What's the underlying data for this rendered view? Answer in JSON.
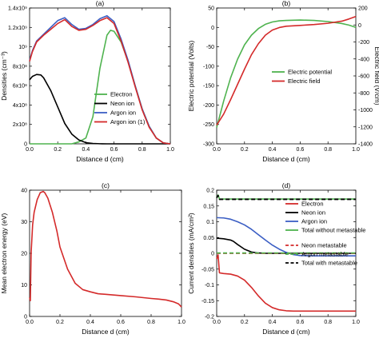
{
  "chart_data": [
    {
      "panel": "a",
      "type": "line",
      "title": "(a)",
      "xlabel": "Distance d (cm)",
      "ylabel": "Densities (cm⁻³)",
      "xlim": [
        0,
        1.0
      ],
      "ylim": [
        0,
        1400000000.0
      ],
      "xticks": [
        0,
        0.2,
        0.4,
        0.6,
        0.8,
        1.0
      ],
      "xtick_labels": [
        "0.0",
        "0.2",
        "0.4",
        "0.6",
        "0.8",
        "1.0"
      ],
      "yticks": [
        0,
        200000000.0,
        400000000.0,
        600000000.0,
        800000000.0,
        1000000000.0,
        1200000000.0,
        1400000000.0
      ],
      "ytick_labels": [
        "0",
        "2x10⁸",
        "4x10⁸",
        "6x10⁸",
        "8x10⁸",
        "10⁹",
        "1.2x10⁹",
        "1.4x10⁹"
      ],
      "legend_position": "bottom-right",
      "series": [
        {
          "name": "Electron",
          "color": "#4fb34f",
          "x": [
            0,
            0.1,
            0.2,
            0.3,
            0.35,
            0.4,
            0.45,
            0.5,
            0.55,
            0.575,
            0.6,
            0.65,
            0.7,
            0.75,
            0.8,
            0.85,
            0.9,
            0.95,
            1.0
          ],
          "y": [
            0,
            0,
            0,
            0,
            20000000.0,
            60000000.0,
            280000000.0,
            780000000.0,
            1120000000.0,
            1170000000.0,
            1160000000.0,
            1050000000.0,
            850000000.0,
            600000000.0,
            360000000.0,
            180000000.0,
            60000000.0,
            10000000.0,
            0
          ]
        },
        {
          "name": "Neon ion",
          "color": "#000000",
          "x": [
            0,
            0.02,
            0.05,
            0.08,
            0.1,
            0.15,
            0.2,
            0.25,
            0.3,
            0.35,
            0.4,
            0.45,
            0.5,
            0.55,
            1.0
          ],
          "y": [
            660000000.0,
            695000000.0,
            715000000.0,
            710000000.0,
            680000000.0,
            550000000.0,
            380000000.0,
            210000000.0,
            100000000.0,
            40000000.0,
            12000000.0,
            4000000.0,
            1000000.0,
            0,
            0
          ]
        },
        {
          "name": "Argon ion",
          "color": "#3b5ec4",
          "x": [
            0,
            0.02,
            0.05,
            0.1,
            0.15,
            0.2,
            0.25,
            0.3,
            0.35,
            0.4,
            0.45,
            0.5,
            0.55,
            0.6,
            0.65,
            0.7,
            0.75,
            0.8,
            0.85,
            0.9,
            0.95,
            1.0
          ],
          "y": [
            860000000.0,
            960000000.0,
            1060000000.0,
            1130000000.0,
            1200000000.0,
            1270000000.0,
            1300000000.0,
            1230000000.0,
            1180000000.0,
            1190000000.0,
            1230000000.0,
            1290000000.0,
            1320000000.0,
            1260000000.0,
            1080000000.0,
            860000000.0,
            600000000.0,
            360000000.0,
            180000000.0,
            60000000.0,
            10000000.0,
            0
          ]
        },
        {
          "name": "Argon ion (1)",
          "color": "#d42a2a",
          "x": [
            0,
            0.02,
            0.05,
            0.1,
            0.15,
            0.2,
            0.25,
            0.3,
            0.35,
            0.4,
            0.45,
            0.5,
            0.55,
            0.6,
            0.65,
            0.7,
            0.75,
            0.8,
            0.85,
            0.9,
            0.95,
            1.0
          ],
          "y": [
            850000000.0,
            950000000.0,
            1050000000.0,
            1120000000.0,
            1180000000.0,
            1240000000.0,
            1280000000.0,
            1210000000.0,
            1170000000.0,
            1180000000.0,
            1220000000.0,
            1270000000.0,
            1300000000.0,
            1240000000.0,
            1060000000.0,
            840000000.0,
            590000000.0,
            350000000.0,
            170000000.0,
            60000000.0,
            10000000.0,
            0
          ]
        }
      ]
    },
    {
      "panel": "b",
      "type": "line",
      "title": "(b)",
      "xlabel": "Distance d (cm)",
      "ylabel": "Electric potential (Volts)",
      "ylabel_right": "Electric field (V/cm)",
      "xlim": [
        0,
        1.0
      ],
      "ylim": [
        -300,
        50
      ],
      "ylim_right": [
        -1400,
        200
      ],
      "xticks": [
        0,
        0.2,
        0.4,
        0.6,
        0.8,
        1.0
      ],
      "xtick_labels": [
        "0.0",
        "0.2",
        "0.4",
        "0.6",
        "0.8",
        "1.0"
      ],
      "yticks": [
        -300,
        -250,
        -200,
        -150,
        -100,
        -50,
        0,
        50
      ],
      "ytick_labels": [
        "-300",
        "-250",
        "-200",
        "-150",
        "-100",
        "-50",
        "0",
        "50"
      ],
      "yticks_right": [
        -1400,
        -1200,
        -1000,
        -800,
        -600,
        -400,
        -200,
        0,
        200
      ],
      "ytick_labels_right": [
        "-1400",
        "-1200",
        "-1000",
        "-800",
        "-600",
        "-400",
        "-200",
        "0",
        "200"
      ],
      "legend_position": "center-right",
      "series": [
        {
          "name": "Electric potential",
          "color": "#4fb34f",
          "axis": "left",
          "x": [
            0,
            0.05,
            0.1,
            0.15,
            0.2,
            0.25,
            0.3,
            0.35,
            0.4,
            0.45,
            0.5,
            0.6,
            0.7,
            0.8,
            0.9,
            0.95,
            1.0
          ],
          "y": [
            -258,
            -190,
            -130,
            -82,
            -45,
            -20,
            -3,
            8,
            14,
            17,
            18,
            19,
            18,
            15,
            10,
            6,
            0
          ]
        },
        {
          "name": "Electric field",
          "color": "#d42a2a",
          "axis": "right",
          "x": [
            0,
            0.05,
            0.1,
            0.15,
            0.2,
            0.25,
            0.3,
            0.35,
            0.4,
            0.45,
            0.5,
            0.6,
            0.7,
            0.8,
            0.9,
            0.95,
            1.0
          ],
          "y": [
            -1180,
            -1050,
            -880,
            -700,
            -520,
            -350,
            -220,
            -120,
            -60,
            -30,
            -15,
            -5,
            5,
            20,
            45,
            70,
            100
          ]
        }
      ]
    },
    {
      "panel": "c",
      "type": "line",
      "title": "(c)",
      "xlabel": "Distance d (cm)",
      "ylabel": "Mean electron energy (eV)",
      "xlim": [
        0,
        1.0
      ],
      "ylim": [
        0,
        40
      ],
      "xticks": [
        0,
        0.2,
        0.4,
        0.6,
        0.8,
        1.0
      ],
      "xtick_labels": [
        "0.0",
        "0.2",
        "0.4",
        "0.6",
        "0.8",
        "1.0"
      ],
      "yticks": [
        0,
        10,
        20,
        30,
        40
      ],
      "ytick_labels": [
        "0",
        "10",
        "20",
        "30",
        "40"
      ],
      "series": [
        {
          "name": "",
          "color": "#d42a2a",
          "x": [
            0,
            0.005,
            0.01,
            0.02,
            0.03,
            0.05,
            0.07,
            0.09,
            0.1,
            0.12,
            0.15,
            0.18,
            0.2,
            0.25,
            0.3,
            0.35,
            0.4,
            0.45,
            0.5,
            0.6,
            0.7,
            0.8,
            0.85,
            0.9,
            0.95,
            0.98,
            1.0
          ],
          "y": [
            6,
            5,
            20,
            29,
            33,
            37,
            39.2,
            39.6,
            39.2,
            37.5,
            33,
            27,
            22,
            15,
            10.5,
            8.5,
            7.8,
            7.2,
            7.0,
            6.6,
            6.2,
            5.7,
            5.5,
            5.2,
            4.6,
            4.0,
            3.0
          ]
        }
      ]
    },
    {
      "panel": "d",
      "type": "line",
      "title": "(d)",
      "xlabel": "Distance d (cm)",
      "ylabel": "Current densities (mA/cm²)",
      "xlim": [
        0,
        1.0
      ],
      "ylim": [
        -0.2,
        0.2
      ],
      "xticks": [
        0,
        0.2,
        0.4,
        0.6,
        0.8,
        1.0
      ],
      "xtick_labels": [
        "0.0",
        "0.2",
        "0.4",
        "0.6",
        "0.8",
        "1.0"
      ],
      "yticks": [
        -0.2,
        -0.15,
        -0.1,
        -0.05,
        0,
        0.05,
        0.1,
        0.15,
        0.2
      ],
      "ytick_labels": [
        "-0.2",
        "-0.15",
        "-0.1",
        "-0.05",
        "0",
        "0.05",
        "0.1",
        "0.15",
        "0.2"
      ],
      "legend_position": "right",
      "series": [
        {
          "name": "Electron",
          "color": "#d42a2a",
          "dash": false,
          "x": [
            0,
            0.01,
            0.02,
            0.05,
            0.1,
            0.15,
            0.2,
            0.25,
            0.3,
            0.35,
            0.4,
            0.45,
            0.5,
            0.55,
            0.6,
            0.7,
            0.8,
            0.9,
            1.0
          ],
          "y": [
            -0.018,
            -0.005,
            -0.062,
            -0.064,
            -0.066,
            -0.072,
            -0.085,
            -0.108,
            -0.135,
            -0.158,
            -0.172,
            -0.179,
            -0.182,
            -0.183,
            -0.183,
            -0.183,
            -0.183,
            -0.183,
            -0.183
          ]
        },
        {
          "name": "Neon ion",
          "color": "#000000",
          "dash": false,
          "x": [
            0,
            0.05,
            0.1,
            0.12,
            0.15,
            0.2,
            0.25,
            0.3,
            0.35,
            0.4,
            1.0
          ],
          "y": [
            0.048,
            0.046,
            0.042,
            0.038,
            0.028,
            0.013,
            0.004,
            0.001,
            0,
            0,
            0
          ]
        },
        {
          "name": "Argon ion",
          "color": "#3b5ec4",
          "dash": false,
          "x": [
            0,
            0.05,
            0.1,
            0.15,
            0.2,
            0.25,
            0.3,
            0.35,
            0.4,
            0.45,
            0.5,
            0.55,
            0.6,
            0.7,
            0.8,
            0.9,
            1.0
          ],
          "y": [
            0.113,
            0.112,
            0.108,
            0.1,
            0.09,
            0.076,
            0.059,
            0.042,
            0.026,
            0.013,
            0.003,
            -0.004,
            -0.007,
            -0.008,
            -0.008,
            -0.008,
            -0.008
          ]
        },
        {
          "name": "Total without metastable",
          "color": "#4fb34f",
          "dash": false,
          "x": [
            0,
            0.01,
            0.02,
            1.0
          ],
          "y": [
            0.178,
            0.185,
            0.172,
            0.172
          ]
        },
        {
          "name": "Neon metastable",
          "color": "#d42a2a",
          "dash": true,
          "x": [
            0,
            1.0
          ],
          "y": [
            0,
            0
          ]
        },
        {
          "name": "Argon metastable",
          "color": "#4fb34f",
          "dash": true,
          "x": [
            0,
            1.0
          ],
          "y": [
            0.001,
            0.001
          ]
        },
        {
          "name": "Total with metastable",
          "color": "#000000",
          "dash": true,
          "x": [
            0,
            0.01,
            0.02,
            1.0
          ],
          "y": [
            0.176,
            0.183,
            0.171,
            0.171
          ]
        }
      ]
    }
  ]
}
